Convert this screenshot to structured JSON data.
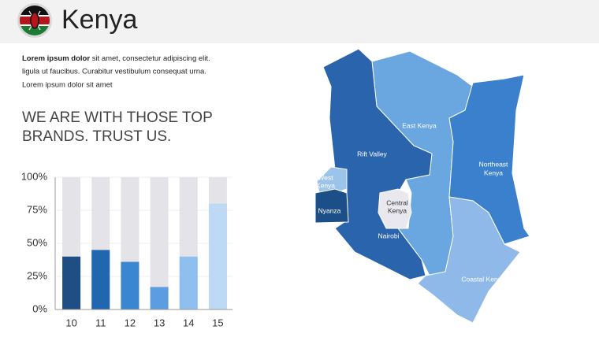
{
  "header": {
    "title": "Kenya"
  },
  "paragraph": {
    "bold": "Lorem ipsum dolor",
    "lines": [
      "sit amet, consectetur adipiscing elit.",
      "ligula ut faucibus. Curabitur vestibulum consequat urna.",
      "Lorem ipsum dolor sit amet"
    ]
  },
  "heading": [
    "WE ARE WITH THOSE TOP",
    "BRANDS. TRUST US."
  ],
  "chart_data": {
    "type": "bar",
    "categories": [
      "10",
      "11",
      "12",
      "13",
      "14",
      "15"
    ],
    "values": [
      40,
      45,
      36,
      17,
      40,
      80
    ],
    "colors": [
      "#1f4e85",
      "#2166b0",
      "#3a86d0",
      "#5b9de0",
      "#8ebfee",
      "#bdd9f5"
    ],
    "ylim": [
      0,
      100
    ],
    "yticks": [
      {
        "value": 0,
        "label": "0%"
      },
      {
        "value": 25,
        "label": "25%"
      },
      {
        "value": 50,
        "label": "50%"
      },
      {
        "value": 75,
        "label": "75%"
      },
      {
        "value": 100,
        "label": "100%"
      }
    ],
    "grid": true
  },
  "map": {
    "regions": [
      [
        "East Kenya"
      ],
      [
        "Rift Valley"
      ],
      [
        "Northeast",
        "Kenya"
      ],
      [
        "West",
        "Kenya"
      ],
      [
        "Central",
        "Kenya"
      ],
      [
        "Nyanza"
      ],
      [
        "Nairobi"
      ],
      [
        "Coastal Kenya"
      ]
    ]
  }
}
